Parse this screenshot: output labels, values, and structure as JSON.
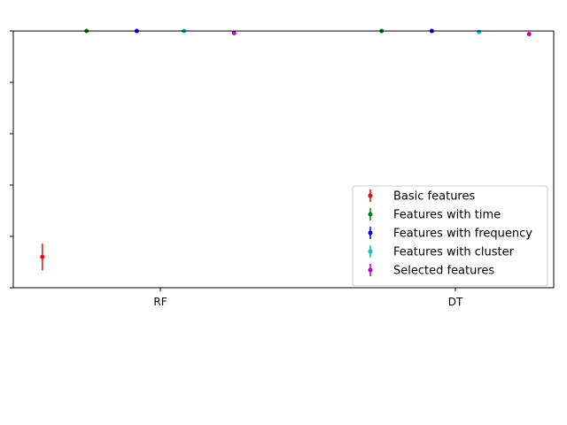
{
  "chart_data": {
    "type": "scatter",
    "categories": [
      "RF",
      "DT"
    ],
    "series": [
      {
        "name": "Basic features",
        "color": "#ff0000",
        "points": [
          {
            "category": "RF",
            "offset": -0.4,
            "y": 0.978,
            "err": 0.0013
          }
        ]
      },
      {
        "name": "Features with time",
        "color": "#008000",
        "points": [
          {
            "category": "RF",
            "offset": -0.25,
            "y": 1.0,
            "err": 0.0001
          },
          {
            "category": "DT",
            "offset": -0.25,
            "y": 1.0,
            "err": 0.0001
          }
        ]
      },
      {
        "name": "Features with frequency",
        "color": "#0000ff",
        "points": [
          {
            "category": "RF",
            "offset": -0.08,
            "y": 1.0,
            "err": 0.0001
          },
          {
            "category": "DT",
            "offset": -0.08,
            "y": 1.0,
            "err": 0.0001
          }
        ]
      },
      {
        "name": "Features with cluster",
        "color": "#00bfbf",
        "points": [
          {
            "category": "RF",
            "offset": 0.08,
            "y": 1.0,
            "err": 0.0001
          },
          {
            "category": "DT",
            "offset": 0.08,
            "y": 0.9999,
            "err": 0.0001
          }
        ]
      },
      {
        "name": "Selected features",
        "color": "#bf00bf",
        "points": [
          {
            "category": "RF",
            "offset": 0.25,
            "y": 0.9998,
            "err": 0.0001
          },
          {
            "category": "DT",
            "offset": 0.25,
            "y": 0.9997,
            "err": 0.0001
          }
        ]
      }
    ],
    "ylim": [
      0.975,
      1.0
    ],
    "legend_position": "lower-right",
    "grid": false
  }
}
